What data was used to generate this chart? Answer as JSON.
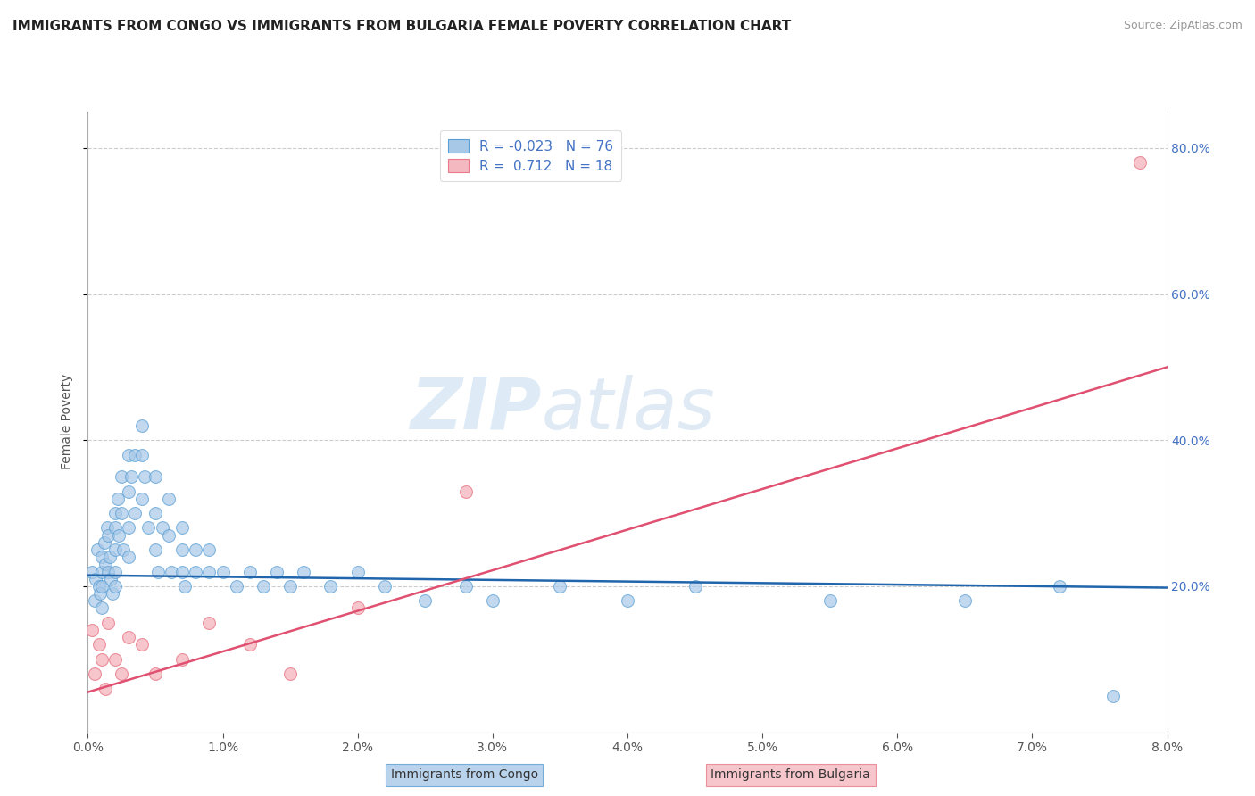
{
  "title": "IMMIGRANTS FROM CONGO VS IMMIGRANTS FROM BULGARIA FEMALE POVERTY CORRELATION CHART",
  "source": "Source: ZipAtlas.com",
  "xlabel_congo": "Immigrants from Congo",
  "xlabel_bulgaria": "Immigrants from Bulgaria",
  "ylabel": "Female Poverty",
  "xlim": [
    0.0,
    0.08
  ],
  "ylim": [
    0.0,
    0.85
  ],
  "x_ticks": [
    0.0,
    0.01,
    0.02,
    0.03,
    0.04,
    0.05,
    0.06,
    0.07,
    0.08
  ],
  "x_tick_labels": [
    "0.0%",
    "1.0%",
    "2.0%",
    "3.0%",
    "4.0%",
    "5.0%",
    "6.0%",
    "7.0%",
    "8.0%"
  ],
  "right_y_ticks": [
    0.2,
    0.4,
    0.6,
    0.8
  ],
  "right_y_tick_labels": [
    "20.0%",
    "40.0%",
    "60.0%",
    "80.0%"
  ],
  "congo_color": "#a8c8e8",
  "congo_edge_color": "#5a9fd4",
  "bulgaria_color": "#f4b8c0",
  "bulgaria_edge_color": "#e87a8a",
  "congo_line_color": "#2166ac",
  "bulgaria_line_color": "#e05070",
  "watermark_zip": "ZIP",
  "watermark_atlas": "atlas",
  "congo_scatter_x": [
    0.0003,
    0.0005,
    0.0006,
    0.0007,
    0.0008,
    0.0009,
    0.001,
    0.001,
    0.001,
    0.001,
    0.0012,
    0.0013,
    0.0014,
    0.0015,
    0.0015,
    0.0016,
    0.0017,
    0.0018,
    0.002,
    0.002,
    0.002,
    0.002,
    0.002,
    0.0022,
    0.0023,
    0.0025,
    0.0025,
    0.0026,
    0.003,
    0.003,
    0.003,
    0.003,
    0.0032,
    0.0035,
    0.0035,
    0.004,
    0.004,
    0.004,
    0.0042,
    0.0045,
    0.005,
    0.005,
    0.005,
    0.0052,
    0.0055,
    0.006,
    0.006,
    0.0062,
    0.007,
    0.007,
    0.007,
    0.0072,
    0.008,
    0.008,
    0.009,
    0.009,
    0.01,
    0.011,
    0.012,
    0.013,
    0.014,
    0.015,
    0.016,
    0.018,
    0.02,
    0.022,
    0.025,
    0.028,
    0.03,
    0.035,
    0.04,
    0.045,
    0.055,
    0.065,
    0.072,
    0.076
  ],
  "congo_scatter_y": [
    0.22,
    0.18,
    0.21,
    0.25,
    0.2,
    0.19,
    0.24,
    0.22,
    0.2,
    0.17,
    0.26,
    0.23,
    0.28,
    0.27,
    0.22,
    0.24,
    0.21,
    0.19,
    0.3,
    0.28,
    0.25,
    0.22,
    0.2,
    0.32,
    0.27,
    0.35,
    0.3,
    0.25,
    0.38,
    0.33,
    0.28,
    0.24,
    0.35,
    0.38,
    0.3,
    0.42,
    0.38,
    0.32,
    0.35,
    0.28,
    0.35,
    0.3,
    0.25,
    0.22,
    0.28,
    0.32,
    0.27,
    0.22,
    0.28,
    0.25,
    0.22,
    0.2,
    0.25,
    0.22,
    0.25,
    0.22,
    0.22,
    0.2,
    0.22,
    0.2,
    0.22,
    0.2,
    0.22,
    0.2,
    0.22,
    0.2,
    0.18,
    0.2,
    0.18,
    0.2,
    0.18,
    0.2,
    0.18,
    0.18,
    0.2,
    0.05
  ],
  "bulgaria_scatter_x": [
    0.0003,
    0.0005,
    0.0008,
    0.001,
    0.0013,
    0.0015,
    0.002,
    0.0025,
    0.003,
    0.004,
    0.005,
    0.007,
    0.009,
    0.012,
    0.015,
    0.02,
    0.028,
    0.078
  ],
  "bulgaria_scatter_y": [
    0.14,
    0.08,
    0.12,
    0.1,
    0.06,
    0.15,
    0.1,
    0.08,
    0.13,
    0.12,
    0.08,
    0.1,
    0.15,
    0.12,
    0.08,
    0.17,
    0.33,
    0.78
  ],
  "congo_line_x0": 0.0,
  "congo_line_x1": 0.08,
  "congo_line_y0": 0.215,
  "congo_line_y1": 0.198,
  "bulgaria_line_x0": 0.0,
  "bulgaria_line_x1": 0.08,
  "bulgaria_line_y0": 0.055,
  "bulgaria_line_y1": 0.5
}
